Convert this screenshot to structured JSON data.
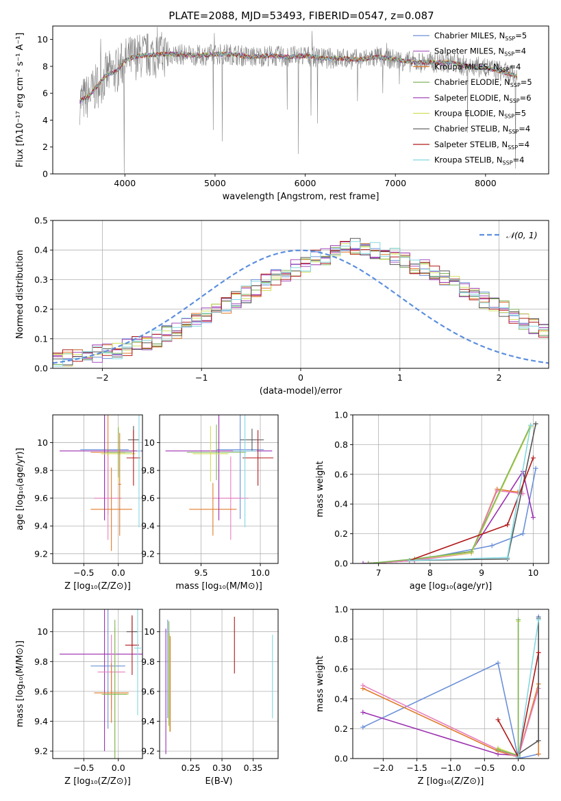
{
  "figure_title": "PLATE=2088, MJD=53493, FIBERID=0547, z=0.087",
  "colors": {
    "chabrier_miles": "#6a8fd8",
    "salpeter_miles": "#a64fbf",
    "kroupa_miles": "#e07a27",
    "chabrier_elodie": "#7fb55a",
    "salpeter_elodie": "#9b30b0",
    "kroupa_elodie": "#d2de5a",
    "chabrier_stelib": "#555555",
    "salpeter_stelib": "#b01818",
    "kroupa_stelib": "#82d8e0",
    "pink": "#e87fbf",
    "spectrum": "#808080",
    "gaussian": "#5b8ede",
    "grid": "#b0b0b0"
  },
  "chart_data": [
    {
      "id": "spectrum",
      "type": "line",
      "title": "PLATE=2088, MJD=53493, FIBERID=0547, z=0.087",
      "xlabel": "wavelength [Angstrom, rest frame]",
      "ylabel": "Flux [fλ10⁻¹⁷ erg cm⁻² s⁻¹ A⁻¹]",
      "xlim": [
        3200,
        8700
      ],
      "ylim": [
        0,
        11
      ],
      "xticks": [
        4000,
        5000,
        6000,
        7000,
        8000
      ],
      "yticks": [
        0,
        2,
        4,
        6,
        8,
        10
      ],
      "grid": false,
      "legend_position": "right",
      "data_envelope": {
        "x": [
          3500,
          3600,
          3700,
          3800,
          3900,
          4000,
          4100,
          4200,
          4400,
          4600,
          4800,
          5000,
          5200,
          5400,
          5600,
          5800,
          6000,
          6200,
          6400,
          6600,
          6800,
          7000,
          7200,
          7400,
          7600,
          7800,
          8000,
          8200,
          8350
        ],
        "y": [
          5.4,
          5.8,
          6.6,
          7.4,
          7.6,
          8.4,
          8.7,
          8.8,
          8.9,
          8.9,
          8.8,
          8.9,
          8.9,
          8.7,
          8.8,
          8.7,
          8.8,
          8.6,
          8.6,
          8.5,
          8.7,
          8.5,
          8.3,
          8.3,
          8.3,
          8.0,
          7.9,
          7.6,
          7.2
        ]
      },
      "legend": [
        {
          "label": "Chabrier MILES, N",
          "sub": "SSP",
          "suffix": "=5",
          "color_key": "chabrier_miles"
        },
        {
          "label": "Salpeter MILES, N",
          "sub": "SSP",
          "suffix": "=4",
          "color_key": "salpeter_miles"
        },
        {
          "label": "Kroupa MILES, N",
          "sub": "SSP",
          "suffix": "=4",
          "color_key": "kroupa_miles"
        },
        {
          "label": "Chabrier ELODIE, N",
          "sub": "SSP",
          "suffix": "=5",
          "color_key": "chabrier_elodie"
        },
        {
          "label": "Salpeter ELODIE, N",
          "sub": "SSP",
          "suffix": "=6",
          "color_key": "salpeter_elodie"
        },
        {
          "label": "Kroupa ELODIE, N",
          "sub": "SSP",
          "suffix": "=5",
          "color_key": "kroupa_elodie"
        },
        {
          "label": "Chabrier STELIB, N",
          "sub": "SSP",
          "suffix": "=4",
          "color_key": "chabrier_stelib"
        },
        {
          "label": "Salpeter STELIB, N",
          "sub": "SSP",
          "suffix": "=4",
          "color_key": "salpeter_stelib"
        },
        {
          "label": "Kroupa STELIB, N",
          "sub": "SSP",
          "suffix": "=4",
          "color_key": "kroupa_stelib"
        }
      ]
    },
    {
      "id": "residuals",
      "type": "line",
      "xlabel": "(data-model)/error",
      "ylabel": "Normed distribution",
      "xlim": [
        -2.5,
        2.5
      ],
      "ylim": [
        0,
        0.5
      ],
      "xticks": [
        -2,
        -1,
        0,
        1,
        2
      ],
      "xticklabels": [
        "−2",
        "−1",
        "0",
        "1",
        "2"
      ],
      "yticks": [
        0.0,
        0.1,
        0.2,
        0.3,
        0.4,
        0.5
      ],
      "grid": true,
      "legend_position": "top-right",
      "legend": [
        {
          "label": "𝒩(0, 1)",
          "color_key": "gaussian"
        }
      ],
      "hist_bin_width": 0.1,
      "hist_x_start": -2.5,
      "hist_mean_shape": [
        0.03,
        0.035,
        0.04,
        0.045,
        0.05,
        0.055,
        0.06,
        0.07,
        0.08,
        0.09,
        0.1,
        0.115,
        0.13,
        0.145,
        0.16,
        0.18,
        0.2,
        0.215,
        0.235,
        0.25,
        0.27,
        0.29,
        0.31,
        0.325,
        0.34,
        0.355,
        0.37,
        0.38,
        0.39,
        0.4,
        0.41,
        0.41,
        0.4,
        0.39,
        0.38,
        0.37,
        0.35,
        0.34,
        0.32,
        0.3,
        0.29,
        0.27,
        0.25,
        0.23,
        0.215,
        0.2,
        0.18,
        0.16,
        0.145,
        0.13
      ],
      "gaussian": {
        "mean": 0,
        "sigma": 1
      }
    },
    {
      "id": "age_vs_Z",
      "type": "scatter",
      "xlabel": "Z [log₁₀(Z/Z⊙)]",
      "ylabel": "age  [log₁₀(age/yr)]",
      "xlim": [
        -0.95,
        0.35
      ],
      "ylim": [
        9.13,
        10.2
      ],
      "xticks": [
        -0.5,
        0.0
      ],
      "xticklabels": [
        "−0.5",
        "0.0"
      ],
      "yticks": [
        9.2,
        9.4,
        9.6,
        9.8,
        10.0
      ],
      "grid": true,
      "points": [
        {
          "x": -0.2,
          "y": 9.95,
          "xerr": 0.35,
          "yerr": 0.5,
          "color_key": "chabrier_miles"
        },
        {
          "x": -0.15,
          "y": 9.93,
          "xerr": 0.25,
          "yerr": 0.45,
          "color_key": "kroupa_miles"
        },
        {
          "x": -0.15,
          "y": 9.6,
          "xerr": 0.2,
          "yerr": 0.3,
          "color_key": "pink"
        },
        {
          "x": -0.1,
          "y": 9.52,
          "xerr": 0.3,
          "yerr": 0.3,
          "color_key": "kroupa_miles"
        },
        {
          "x": -0.2,
          "y": 9.94,
          "xerr": 0.65,
          "yerr": 0.5,
          "color_key": "salpeter_elodie"
        },
        {
          "x": 0.0,
          "y": 9.92,
          "xerr": 0.25,
          "yerr": 0.2,
          "color_key": "kroupa_elodie"
        },
        {
          "x": 0.0,
          "y": 9.93,
          "xerr": 0.2,
          "yerr": 0.18,
          "color_key": "chabrier_elodie"
        },
        {
          "x": 0.22,
          "y": 10.02,
          "xerr": 0.08,
          "yerr": 0.1,
          "color_key": "chabrier_stelib"
        },
        {
          "x": 0.22,
          "y": 9.89,
          "xerr": 0.1,
          "yerr": 0.2,
          "color_key": "salpeter_stelib"
        },
        {
          "x": 0.3,
          "y": 9.94,
          "xerr": 0.03,
          "yerr": 0.55,
          "color_key": "kroupa_stelib"
        },
        {
          "x": 0.02,
          "y": 9.7,
          "xerr": 0.02,
          "yerr": 0.37,
          "color_key": "kroupa_miles"
        }
      ]
    },
    {
      "id": "age_vs_mass",
      "type": "scatter",
      "xlabel": "mass [log₁₀(M/M⊙)]",
      "xlim": [
        9.15,
        10.15
      ],
      "ylim": [
        9.13,
        10.2
      ],
      "xticks": [
        9.5,
        10.0
      ],
      "xticklabels": [
        "9.5",
        "10.0"
      ],
      "yticks": [
        9.2,
        9.4,
        9.6,
        9.8,
        10.0
      ],
      "grid": true,
      "points": [
        {
          "x": 9.83,
          "y": 9.95,
          "xerr": 0.2,
          "yerr": 0.5,
          "color_key": "chabrier_miles"
        },
        {
          "x": 9.63,
          "y": 9.93,
          "xerr": 0.25,
          "yerr": 0.2,
          "color_key": "chabrier_elodie"
        },
        {
          "x": 9.75,
          "y": 9.6,
          "xerr": 0.15,
          "yerr": 0.3,
          "color_key": "pink"
        },
        {
          "x": 9.6,
          "y": 9.52,
          "xerr": 0.2,
          "yerr": 0.19,
          "color_key": "kroupa_miles"
        },
        {
          "x": 9.65,
          "y": 9.94,
          "xerr": 0.45,
          "yerr": 0.5,
          "color_key": "salpeter_elodie"
        },
        {
          "x": 9.58,
          "y": 9.92,
          "xerr": 0.15,
          "yerr": 0.2,
          "color_key": "kroupa_elodie"
        },
        {
          "x": 9.93,
          "y": 10.02,
          "xerr": 0.1,
          "yerr": 0.08,
          "color_key": "chabrier_stelib"
        },
        {
          "x": 9.98,
          "y": 9.89,
          "xerr": 0.13,
          "yerr": 0.2,
          "color_key": "salpeter_stelib"
        },
        {
          "x": 9.87,
          "y": 9.94,
          "xerr": 0.1,
          "yerr": 0.55,
          "color_key": "kroupa_stelib"
        }
      ]
    },
    {
      "id": "weight_vs_age",
      "type": "line",
      "xlabel": "age  [log₁₀(age/yr)]",
      "ylabel": "mass weight",
      "xlim": [
        6.5,
        10.3
      ],
      "ylim": [
        0,
        1.0
      ],
      "xticks": [
        7,
        8,
        9,
        10
      ],
      "yticks": [
        0.0,
        0.2,
        0.4,
        0.6,
        0.8,
        1.0
      ],
      "grid": true,
      "series": [
        {
          "color_key": "chabrier_miles",
          "x": [
            6.8,
            7.7,
            9.2,
            9.8,
            10.05
          ],
          "y": [
            0.0,
            0.02,
            0.12,
            0.2,
            0.64
          ]
        },
        {
          "color_key": "salpeter_elodie",
          "x": [
            6.7,
            7.7,
            8.8,
            9.8,
            10.0
          ],
          "y": [
            0.0,
            0.02,
            0.08,
            0.62,
            0.31
          ]
        },
        {
          "color_key": "kroupa_miles",
          "x": [
            6.8,
            7.7,
            8.8,
            9.3,
            9.7
          ],
          "y": [
            0.0,
            0.02,
            0.07,
            0.5,
            0.48
          ]
        },
        {
          "color_key": "pink",
          "x": [
            6.8,
            7.7,
            8.8,
            9.3,
            9.8
          ],
          "y": [
            0.0,
            0.02,
            0.07,
            0.49,
            0.47
          ]
        },
        {
          "color_key": "kroupa_elodie",
          "x": [
            6.8,
            7.7,
            8.8,
            9.95
          ],
          "y": [
            0.0,
            0.03,
            0.07,
            0.92
          ]
        },
        {
          "color_key": "chabrier_elodie",
          "x": [
            6.8,
            7.7,
            8.8,
            9.95
          ],
          "y": [
            0.0,
            0.03,
            0.08,
            0.93
          ]
        },
        {
          "color_key": "chabrier_stelib",
          "x": [
            7.6,
            9.5,
            10.05
          ],
          "y": [
            0.02,
            0.03,
            0.94
          ]
        },
        {
          "color_key": "salpeter_stelib",
          "x": [
            7.6,
            9.5,
            10.0
          ],
          "y": [
            0.02,
            0.26,
            0.71
          ]
        },
        {
          "color_key": "kroupa_stelib",
          "x": [
            7.6,
            9.5,
            9.95
          ],
          "y": [
            0.02,
            0.04,
            0.93
          ]
        }
      ]
    },
    {
      "id": "mass_vs_Z",
      "type": "scatter",
      "xlabel": "Z [log₁₀(Z/Z⊙)]",
      "ylabel": "mass [log₁₀(M/M⊙)]",
      "xlim": [
        -0.95,
        0.35
      ],
      "ylim": [
        9.15,
        10.15
      ],
      "xticks": [
        -0.5,
        0.0
      ],
      "xticklabels": [
        "−0.5",
        "0.0"
      ],
      "yticks": [
        9.2,
        9.4,
        9.6,
        9.8,
        10.0
      ],
      "grid": true,
      "points": [
        {
          "x": -0.15,
          "y": 9.77,
          "xerr": 0.25,
          "yerr": 0.42,
          "color_key": "chabrier_miles"
        },
        {
          "x": -0.2,
          "y": 9.85,
          "xerr": 0.65,
          "yerr": 0.65,
          "color_key": "salpeter_elodie"
        },
        {
          "x": -0.1,
          "y": 9.73,
          "xerr": 0.2,
          "yerr": 0.25,
          "color_key": "pink"
        },
        {
          "x": -0.1,
          "y": 9.59,
          "xerr": 0.25,
          "yerr": 0.2,
          "color_key": "kroupa_miles"
        },
        {
          "x": -0.05,
          "y": 9.58,
          "xerr": 0.2,
          "yerr": 0.45,
          "color_key": "kroupa_elodie"
        },
        {
          "x": -0.05,
          "y": 9.58,
          "xerr": 0.18,
          "yerr": 0.5,
          "color_key": "chabrier_elodie"
        },
        {
          "x": 0.2,
          "y": 10.0,
          "xerr": 0.08,
          "yerr": 0.1,
          "color_key": "chabrier_stelib"
        },
        {
          "x": 0.2,
          "y": 9.91,
          "xerr": 0.1,
          "yerr": 0.2,
          "color_key": "salpeter_stelib"
        },
        {
          "x": 0.28,
          "y": 9.89,
          "xerr": 0.05,
          "yerr": 0.45,
          "color_key": "kroupa_stelib"
        }
      ]
    },
    {
      "id": "mass_vs_ebv",
      "type": "scatter",
      "xlabel": "E(B-V)",
      "xlim": [
        0.2,
        0.39
      ],
      "ylim": [
        9.15,
        10.15
      ],
      "xticks": [
        0.25,
        0.3,
        0.35
      ],
      "xticklabels": [
        "0.25",
        "0.30",
        "0.35"
      ],
      "yticks": [
        9.2,
        9.4,
        9.6,
        9.8,
        10.0
      ],
      "grid": true,
      "points": [
        {
          "x": 0.21,
          "y": 9.6,
          "xerr": 0,
          "yerr": 0.42,
          "color_key": "salpeter_elodie"
        },
        {
          "x": 0.213,
          "y": 9.75,
          "xerr": 0,
          "yerr": 0.33,
          "color_key": "chabrier_miles"
        },
        {
          "x": 0.215,
          "y": 9.72,
          "xerr": 0,
          "yerr": 0.35,
          "color_key": "chabrier_elodie"
        },
        {
          "x": 0.216,
          "y": 9.66,
          "xerr": 0,
          "yerr": 0.33,
          "color_key": "kroupa_elodie"
        },
        {
          "x": 0.217,
          "y": 9.65,
          "xerr": 0,
          "yerr": 0.32,
          "color_key": "kroupa_miles"
        },
        {
          "x": 0.32,
          "y": 9.91,
          "xerr": 0,
          "yerr": 0.19,
          "color_key": "salpeter_stelib"
        },
        {
          "x": 0.381,
          "y": 9.7,
          "xerr": 0,
          "yerr": 0.28,
          "color_key": "kroupa_stelib"
        }
      ]
    },
    {
      "id": "weight_vs_Z",
      "type": "line",
      "xlabel": "Z [log₁₀(Z/Z⊙)]",
      "ylabel": "mass weight",
      "xlim": [
        -2.45,
        0.45
      ],
      "ylim": [
        0,
        1.0
      ],
      "xticks": [
        -2.0,
        -1.5,
        -1.0,
        -0.5,
        0.0
      ],
      "xticklabels": [
        "−2.0",
        "−1.5",
        "−1.0",
        "−0.5",
        "0.0"
      ],
      "yticks": [
        0.0,
        0.2,
        0.4,
        0.6,
        0.8,
        1.0
      ],
      "grid": true,
      "series": [
        {
          "color_key": "chabrier_miles",
          "x": [
            -2.3,
            -0.3,
            0.0,
            0.3,
            0.3
          ],
          "y": [
            0.21,
            0.64,
            0.0,
            0.03,
            0.95
          ]
        },
        {
          "color_key": "salpeter_elodie",
          "x": [
            -2.3,
            -0.3,
            0.0
          ],
          "y": [
            0.31,
            0.03,
            0.02
          ]
        },
        {
          "color_key": "kroupa_miles",
          "x": [
            -2.3,
            -0.3,
            0.0,
            0.3,
            0.3
          ],
          "y": [
            0.47,
            0.05,
            0.01,
            0.5,
            0.03
          ]
        },
        {
          "color_key": "pink",
          "x": [
            -2.3,
            -0.3,
            0.0,
            0.3
          ],
          "y": [
            0.49,
            0.06,
            0.01,
            0.47
          ]
        },
        {
          "color_key": "kroupa_elodie",
          "x": [
            -0.3,
            0.0,
            0.0
          ],
          "y": [
            0.07,
            0.02,
            0.92
          ]
        },
        {
          "color_key": "chabrier_elodie",
          "x": [
            -0.3,
            0.0,
            0.0
          ],
          "y": [
            0.06,
            0.02,
            0.93
          ]
        },
        {
          "color_key": "chabrier_stelib",
          "x": [
            0.0,
            0.3,
            0.3
          ],
          "y": [
            0.03,
            0.12,
            0.94
          ]
        },
        {
          "color_key": "salpeter_stelib",
          "x": [
            -0.3,
            0.0,
            0.3
          ],
          "y": [
            0.26,
            0.01,
            0.71
          ]
        },
        {
          "color_key": "kroupa_stelib",
          "x": [
            0.0,
            0.3
          ],
          "y": [
            0.01,
            0.93
          ]
        }
      ]
    }
  ]
}
